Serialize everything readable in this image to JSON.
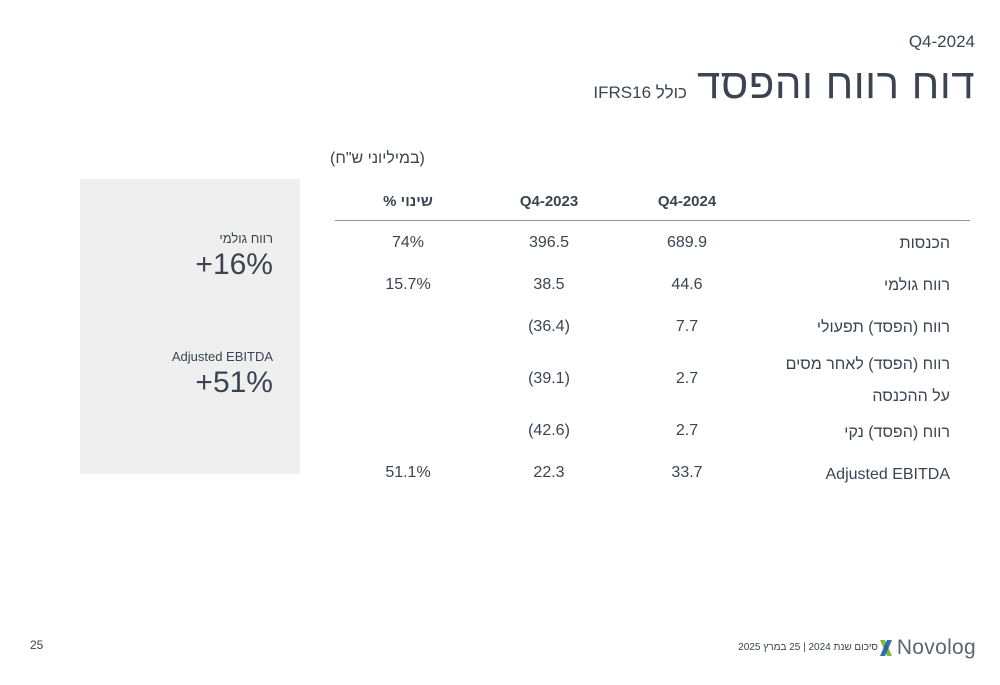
{
  "header": {
    "quarter": "Q4-2024",
    "title": "דוח רווח והפסד",
    "subtitle": "כולל IFRS16"
  },
  "unit_label": "(במיליוני ש\"ח)",
  "highlights": [
    {
      "label": "רווח גולמי",
      "value": "+16%"
    },
    {
      "label": "Adjusted EBITDA",
      "value": "+51%"
    }
  ],
  "table": {
    "columns": [
      "Q4-2024",
      "Q4-2023",
      "שינוי %"
    ],
    "rows": [
      {
        "label": "הכנסות",
        "q4_2024": "689.9",
        "q4_2023": "396.5",
        "change": "74%"
      },
      {
        "label": "רווח גולמי",
        "q4_2024": "44.6",
        "q4_2023": "38.5",
        "change": "15.7%"
      },
      {
        "label": "רווח (הפסד) תפעולי",
        "q4_2024": "7.7",
        "q4_2023": "(36.4)",
        "change": ""
      },
      {
        "label": "רווח (הפסד) לאחר מסים על ההכנסה",
        "q4_2024": "2.7",
        "q4_2023": "(39.1)",
        "change": ""
      },
      {
        "label": "רווח (הפסד) נקי",
        "q4_2024": "2.7",
        "q4_2023": "(42.6)",
        "change": ""
      },
      {
        "label": "Adjusted EBITDA",
        "q4_2024": "33.7",
        "q4_2023": "22.3",
        "change": "51.1%"
      }
    ]
  },
  "footer": {
    "page_number": "25",
    "text": "סיכום  שנת 2024 | 25 במרץ 2025",
    "logo_text": "Novolog"
  },
  "colors": {
    "text": "#3b4450",
    "panel": "#efefef",
    "logo_green": "#7dbb3c",
    "logo_blue": "#1f5fa8"
  }
}
